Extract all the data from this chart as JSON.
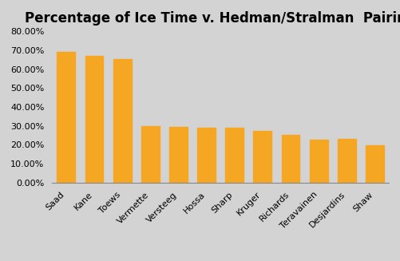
{
  "title": "Percentage of Ice Time v. Hedman/Stralman  Pairing",
  "categories": [
    "Saad",
    "Kane",
    "Toews",
    "Vermette",
    "Versteeg",
    "Hossa",
    "Sharp",
    "Kruger",
    "Richards",
    "Teravainen",
    "Desjardins",
    "Shaw"
  ],
  "values": [
    0.69,
    0.67,
    0.655,
    0.3,
    0.295,
    0.289,
    0.29,
    0.274,
    0.254,
    0.228,
    0.233,
    0.198
  ],
  "bar_color": "#F5A623",
  "background_color": "#D3D3D3",
  "ylim": [
    0,
    0.8
  ],
  "yticks": [
    0.0,
    0.1,
    0.2,
    0.3,
    0.4,
    0.5,
    0.6,
    0.7,
    0.8
  ],
  "title_fontsize": 12,
  "tick_fontsize": 8,
  "bar_width": 0.65
}
